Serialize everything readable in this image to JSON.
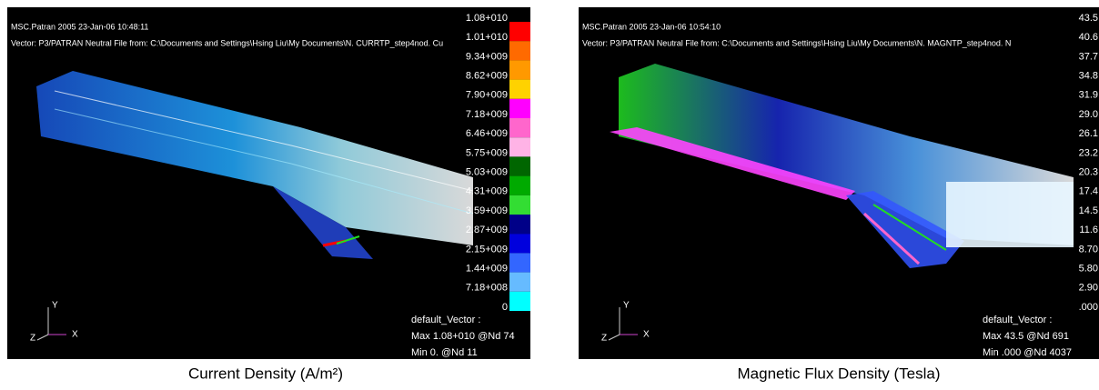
{
  "panels": [
    {
      "header": [
        "MSC.Patran 2005 23-Jan-06 10:48:11",
        "Vector: P3/PATRAN Neutral File from: C:\\Documents and Settings\\Hsing Liu\\My Documents\\N. CURRTP_step4nod. Cu"
      ],
      "scale_labels": [
        "1.08+010",
        "1.01+010",
        "9.34+009",
        "8.62+009",
        "7.90+009",
        "7.18+009",
        "6.46+009",
        "5.75+009",
        "5.03+009",
        "4.31+009",
        "3.59+009",
        "2.87+009",
        "2.15+009",
        "1.44+009",
        "7.18+008",
        "0"
      ],
      "scale_colors": [
        "#ff0000",
        "#ff6a00",
        "#ff9900",
        "#ffd200",
        "#ff00ff",
        "#ff66cc",
        "#ffb3e6",
        "#006600",
        "#00aa00",
        "#33dd33",
        "#000088",
        "#0000dd",
        "#3366ff",
        "#66bbff",
        "#00ffff"
      ],
      "legend": [
        "default_Vector :",
        "Max 1.08+010 @Nd 74",
        "Min 0. @Nd 11"
      ],
      "axes": [
        "Y",
        "Z",
        "X"
      ],
      "caption": "Current Density (A/m²)"
    },
    {
      "header": [
        "MSC.Patran 2005 23-Jan-06 10:54:10",
        "Vector: P3/PATRAN Neutral File from: C:\\Documents and Settings\\Hsing Liu\\My Documents\\N. MAGNTP_step4nod. N"
      ],
      "scale_labels": [
        "43.5",
        "40.6",
        "37.7",
        "34.8",
        "31.9",
        "29.0",
        "26.1",
        "23.2",
        "20.3",
        "17.4",
        "14.5",
        "11.6",
        "8.70",
        "5.80",
        "2.90",
        ".000"
      ],
      "legend": [
        "default_Vector :",
        "Max 43.5 @Nd 691",
        "Min .000 @Nd 4037"
      ],
      "axes": [
        "Y",
        "Z",
        "X"
      ],
      "caption": "Magnetic Flux Density (Tesla)"
    }
  ]
}
